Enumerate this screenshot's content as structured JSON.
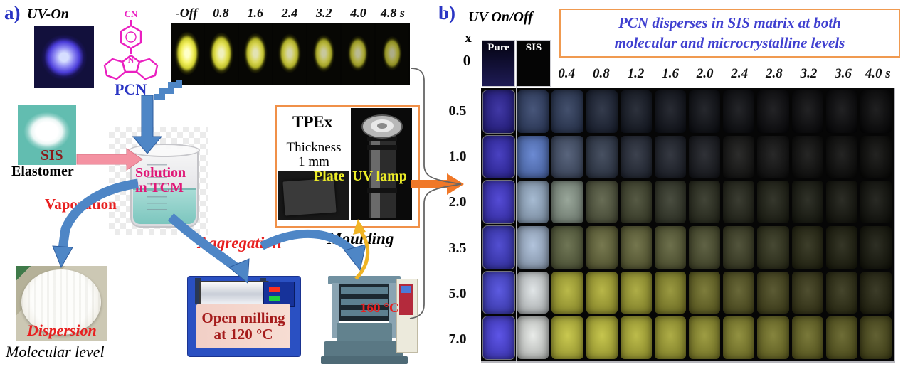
{
  "figure": {
    "panel_a": {
      "label": "a)",
      "uv_on": "UV-On",
      "molecule": {
        "cn": "CN",
        "n": "N",
        "name": "PCN"
      },
      "strip_times": [
        "-Off",
        "0.8",
        "1.6",
        "2.4",
        "3.2",
        "4.0",
        "4.8 s"
      ],
      "sis": "SIS",
      "elastomer": "Elastomer",
      "solution": "Solution in TCM",
      "vaporation": "Vaporation",
      "dispersion": "Dispersion",
      "molecular_level": "Molecular level",
      "aggregation": "Aggregation",
      "moulding": "Moulding",
      "open_milling": "Open milling at 120 °C",
      "press_temp": "160 °C",
      "tpex": {
        "title": "TPEx",
        "thickness": "Thickness",
        "thickness_value": "1 mm",
        "plate": "Plate",
        "uv_lamp": "UV lamp"
      }
    },
    "panel_b": {
      "label": "b)",
      "uv_onoff": "UV On/Off",
      "caption_line1": "PCN disperses in SIS matrix at both",
      "caption_line2": "molecular and microcrystalline levels",
      "x_header": "x",
      "x0_label": "0",
      "pure": "Pure",
      "sis": "SIS",
      "time_labels": [
        "0.4",
        "0.8",
        "1.2",
        "1.6",
        "2.0",
        "2.4",
        "2.8",
        "3.2",
        "3.6",
        "4.0 s"
      ],
      "row0": {
        "pure_color": "#1e1b55",
        "sis_color": "#050505"
      },
      "rows": [
        {
          "x": "0.5",
          "cells": [
            "#2b229b",
            "#33436b",
            "#2e3c5c",
            "#1d2538",
            "#151a26",
            "#10131c",
            "#0d0f15",
            "#0b0c10",
            "#0a0a0d",
            "#09090b",
            "#08080a",
            "#070708"
          ]
        },
        {
          "x": "1.0",
          "cells": [
            "#352cba",
            "#5b7dce",
            "#46536e",
            "#333d50",
            "#262c3a",
            "#1e222c",
            "#181a20",
            "#141413",
            "#101010",
            "#0d0d0c",
            "#0b0b0a",
            "#0a0a08"
          ]
        },
        {
          "x": "2.0",
          "cells": [
            "#4137d0",
            "#9cb3cd",
            "#8d9c8e",
            "#575c42",
            "#43472f",
            "#35392a",
            "#2c2f20",
            "#24261a",
            "#1e2014",
            "#181a10",
            "#14150d",
            "#10110b"
          ]
        },
        {
          "x": "3.5",
          "cells": [
            "#3f3bcc",
            "#a9bdd8",
            "#5f6642",
            "#686a3c",
            "#65673a",
            "#5d6038",
            "#4e5130",
            "#3f4126",
            "#32341c",
            "#272812",
            "#1e1f0e",
            "#16170b"
          ]
        },
        {
          "x": "5.0",
          "cells": [
            "#4a48dd",
            "#dde2e4",
            "#b2b135",
            "#b0ae34",
            "#a5a432",
            "#8f8e2c",
            "#6f6e26",
            "#585722",
            "#49481d",
            "#3b3a18",
            "#303014",
            "#262610"
          ]
        },
        {
          "x": "7.0",
          "cells": [
            "#4b42e4",
            "#e6e9e6",
            "#c3c23c",
            "#c0bf3a",
            "#b5b436",
            "#a5a432",
            "#93922e",
            "#86852c",
            "#787728",
            "#6b6a24",
            "#5e5d20",
            "#504f1c"
          ]
        }
      ]
    },
    "colors": {
      "accent_orange": "#f09048",
      "arrow_blue": "#4e86c6",
      "molecule_magenta": "#ea1fc0",
      "caption_blue": "#3f3fd0",
      "label_red": "#e82020",
      "dark_red": "#8b1a1a",
      "yellow_label": "#eded28",
      "glow_yellow": "#f4f160",
      "uv_glow_blue": "#8a84f2"
    }
  }
}
